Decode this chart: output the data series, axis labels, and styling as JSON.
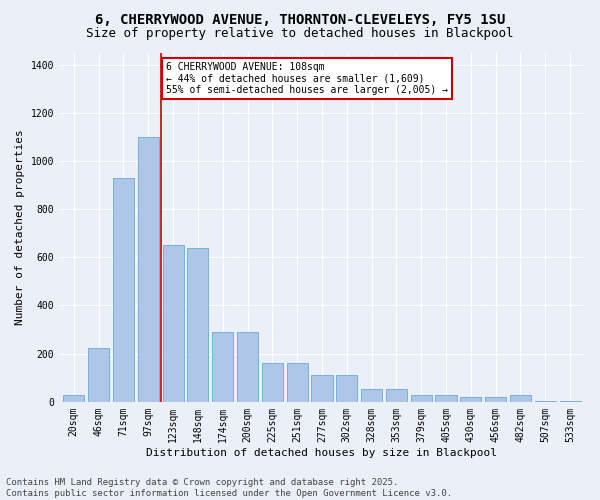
{
  "title_line1": "6, CHERRYWOOD AVENUE, THORNTON-CLEVELEYS, FY5 1SU",
  "title_line2": "Size of property relative to detached houses in Blackpool",
  "xlabel": "Distribution of detached houses by size in Blackpool",
  "ylabel": "Number of detached properties",
  "categories": [
    "20sqm",
    "46sqm",
    "71sqm",
    "97sqm",
    "123sqm",
    "148sqm",
    "174sqm",
    "200sqm",
    "225sqm",
    "251sqm",
    "277sqm",
    "302sqm",
    "328sqm",
    "353sqm",
    "379sqm",
    "405sqm",
    "430sqm",
    "456sqm",
    "482sqm",
    "507sqm",
    "533sqm"
  ],
  "bar_heights": [
    30,
    225,
    930,
    1100,
    650,
    640,
    290,
    290,
    160,
    160,
    110,
    110,
    55,
    55,
    30,
    30,
    20,
    20,
    30,
    5,
    5
  ],
  "bar_color": "#aec6e8",
  "bar_edge_color": "#6aaad4",
  "annotation_text": "6 CHERRYWOOD AVENUE: 108sqm\n← 44% of detached houses are smaller (1,609)\n55% of semi-detached houses are larger (2,005) →",
  "annotation_box_color": "#ffffff",
  "annotation_box_edge": "#cc0000",
  "vline_x_index": 3.5,
  "vline_color": "#cc0000",
  "ylim": [
    0,
    1450
  ],
  "yticks": [
    0,
    200,
    400,
    600,
    800,
    1000,
    1200,
    1400
  ],
  "footer": "Contains HM Land Registry data © Crown copyright and database right 2025.\nContains public sector information licensed under the Open Government Licence v3.0.",
  "bg_color": "#eaeff8",
  "plot_bg_color": "#eaeff8",
  "grid_color": "#ffffff",
  "title_fontsize": 10,
  "subtitle_fontsize": 9,
  "label_fontsize": 8,
  "tick_fontsize": 7,
  "footer_fontsize": 6.5
}
